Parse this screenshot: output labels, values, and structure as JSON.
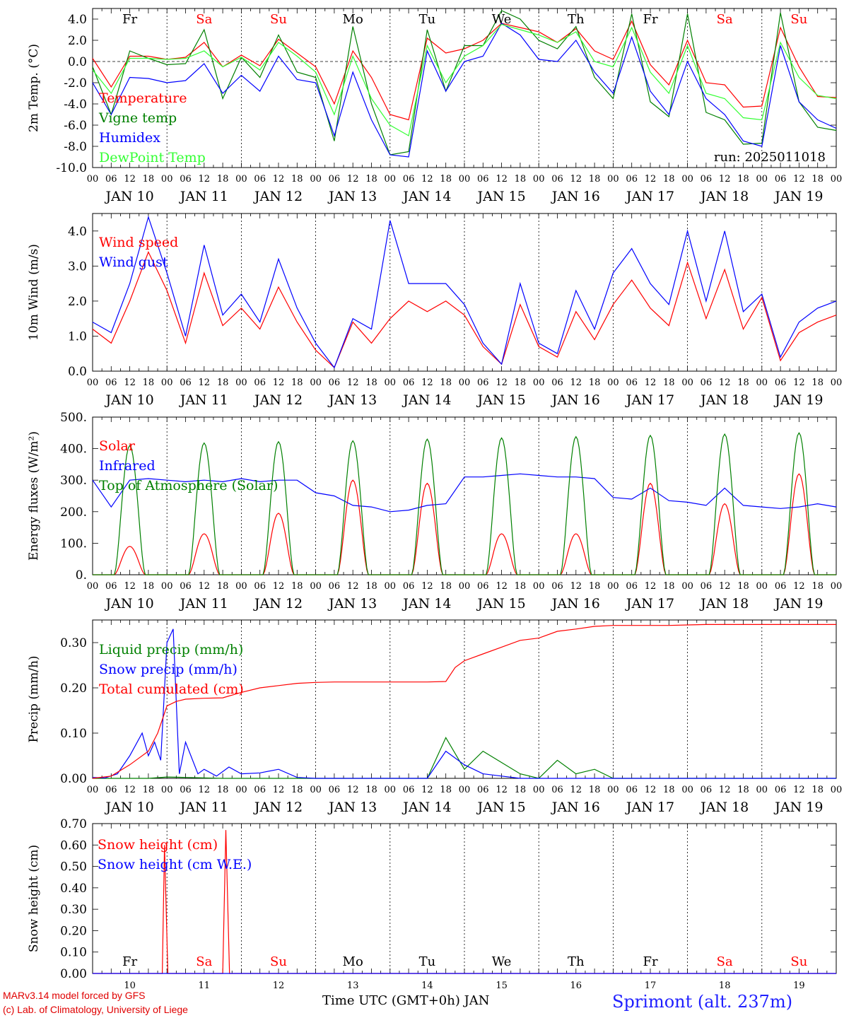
{
  "colors": {
    "red": "#ff0000",
    "darkgreen": "#008000",
    "blue": "#0000ff",
    "lightgreen": "#33ff33"
  },
  "days": [
    "10",
    "11",
    "12",
    "13",
    "14",
    "15",
    "16",
    "17",
    "18",
    "19"
  ],
  "weekdays": [
    {
      "label": "Fr",
      "color": "#000000"
    },
    {
      "label": "Sa",
      "color": "#ff0000"
    },
    {
      "label": "Su",
      "color": "#ff0000"
    },
    {
      "label": "Mo",
      "color": "#000000"
    },
    {
      "label": "Tu",
      "color": "#000000"
    },
    {
      "label": "We",
      "color": "#000000"
    },
    {
      "label": "Th",
      "color": "#000000"
    },
    {
      "label": "Fr",
      "color": "#000000"
    },
    {
      "label": "Sa",
      "color": "#ff0000"
    },
    {
      "label": "Su",
      "color": "#ff0000"
    }
  ],
  "hour_ticks": [
    "00",
    "06",
    "12",
    "18"
  ],
  "month": "JAN",
  "footer": {
    "model": "MARv3.14 model forced by GFS",
    "credit": "(c) Lab. of Climatology, University of Liege",
    "xaxis": "Time UTC (GMT+0h) JAN",
    "station": "Sprimont (alt. 237m)"
  },
  "chart_data": [
    {
      "type": "line",
      "ylabel": "2m Temp. (°C)",
      "ylim": [
        -10,
        5
      ],
      "yticks": [
        "4.0",
        "2.0",
        "0.0",
        "-2.0",
        "-4.0",
        "-6.0",
        "-8.0",
        "-10.0"
      ],
      "run_label": "run: 2025011018",
      "zero_line": true,
      "series": [
        {
          "name": "Temperature",
          "color": "#ff0000",
          "x": [
            0,
            6,
            12,
            18,
            24,
            30,
            36,
            42,
            48,
            54,
            60,
            66,
            72,
            78,
            84,
            90,
            96,
            102,
            108,
            114,
            120,
            126,
            132,
            138,
            144,
            150,
            156,
            162,
            168,
            174,
            180,
            186,
            192,
            198,
            204,
            210,
            216,
            222,
            228,
            234,
            240
          ],
          "y": [
            0.3,
            -2.4,
            0.5,
            0.5,
            0.2,
            0.4,
            1.8,
            -0.5,
            0.6,
            -0.4,
            2.1,
            0.8,
            -0.5,
            -4.0,
            1.0,
            -1.5,
            -5.0,
            -5.5,
            2.2,
            0.8,
            1.2,
            2.0,
            3.6,
            3.2,
            2.8,
            1.8,
            3.1,
            1.0,
            0.2,
            3.8,
            -0.3,
            -2.2,
            2.0,
            -2.0,
            -2.2,
            -4.3,
            -4.2,
            3.2,
            -0.5,
            -3.3,
            -3.4
          ]
        },
        {
          "name": "Vigne temp",
          "color": "#008000",
          "x": [
            0,
            6,
            12,
            18,
            24,
            30,
            36,
            42,
            48,
            54,
            60,
            66,
            72,
            78,
            84,
            90,
            96,
            102,
            108,
            114,
            120,
            126,
            132,
            138,
            144,
            150,
            156,
            162,
            168,
            174,
            180,
            186,
            192,
            198,
            204,
            210,
            216,
            222,
            228,
            234,
            240
          ],
          "y": [
            -0.5,
            -5.0,
            1.0,
            0.3,
            -0.3,
            -0.2,
            3.0,
            -3.5,
            0.4,
            -1.5,
            2.5,
            -1.0,
            -1.5,
            -7.5,
            3.3,
            -4.0,
            -8.8,
            -8.5,
            3.0,
            -2.8,
            1.5,
            1.5,
            4.8,
            4.0,
            2.0,
            1.2,
            3.3,
            -1.5,
            -3.5,
            4.5,
            -3.8,
            -5.2,
            4.5,
            -4.8,
            -5.5,
            -7.8,
            -7.7,
            4.6,
            -3.8,
            -6.2,
            -6.5
          ]
        },
        {
          "name": "Humidex",
          "color": "#0000ff",
          "x": [
            0,
            6,
            12,
            18,
            24,
            30,
            36,
            42,
            48,
            54,
            60,
            66,
            72,
            78,
            84,
            90,
            96,
            102,
            108,
            114,
            120,
            126,
            132,
            138,
            144,
            150,
            156,
            162,
            168,
            174,
            180,
            186,
            192,
            198,
            204,
            210,
            216,
            222,
            228,
            234,
            240
          ],
          "y": [
            -2.0,
            -5.0,
            -1.5,
            -1.6,
            -2.0,
            -1.8,
            -0.2,
            -3.0,
            -1.3,
            -2.8,
            0.5,
            -1.7,
            -2.0,
            -7.0,
            -1.0,
            -5.5,
            -8.8,
            -9.0,
            1.0,
            -2.8,
            0.0,
            0.5,
            3.6,
            2.5,
            0.2,
            0.0,
            2.0,
            -1.0,
            -3.0,
            2.3,
            -2.8,
            -5.0,
            0.0,
            -3.5,
            -5.0,
            -7.5,
            -8.0,
            1.5,
            -3.8,
            -5.5,
            -6.3
          ]
        },
        {
          "name": "DewPoint Temp",
          "color": "#33ff33",
          "x": [
            0,
            6,
            12,
            18,
            24,
            30,
            36,
            42,
            48,
            54,
            60,
            66,
            72,
            78,
            84,
            90,
            96,
            102,
            108,
            114,
            120,
            126,
            132,
            138,
            144,
            150,
            156,
            162,
            168,
            174,
            180,
            186,
            192,
            198,
            204,
            210,
            216,
            222,
            228,
            234,
            240
          ],
          "y": [
            -0.8,
            -3.0,
            0.3,
            0.3,
            0.2,
            0.3,
            1.0,
            -0.5,
            0.4,
            -0.8,
            1.8,
            0.5,
            -1.0,
            -5.0,
            0.5,
            -3.5,
            -6.0,
            -7.0,
            1.5,
            -2.0,
            0.5,
            1.5,
            3.5,
            3.0,
            2.5,
            1.8,
            2.8,
            0.0,
            -0.5,
            3.2,
            -1.0,
            -3.0,
            1.5,
            -3.0,
            -3.5,
            -5.3,
            -5.5,
            1.8,
            -1.5,
            -3.2,
            -3.5
          ]
        }
      ]
    },
    {
      "type": "line",
      "ylabel": "10m Wind (m/s)",
      "ylim": [
        0,
        4.5
      ],
      "yticks": [
        "4.0",
        "3.0",
        "2.0",
        "1.0",
        "0.0"
      ],
      "series": [
        {
          "name": "Wind speed",
          "color": "#ff0000",
          "x": [
            0,
            6,
            12,
            18,
            24,
            30,
            36,
            42,
            48,
            54,
            60,
            66,
            72,
            78,
            84,
            90,
            96,
            102,
            108,
            114,
            120,
            126,
            132,
            138,
            144,
            150,
            156,
            162,
            168,
            174,
            180,
            186,
            192,
            198,
            204,
            210,
            216,
            222,
            228,
            234,
            240
          ],
          "y": [
            1.2,
            0.8,
            2.0,
            3.4,
            2.3,
            0.8,
            2.8,
            1.3,
            1.8,
            1.2,
            2.4,
            1.4,
            0.6,
            0.1,
            1.4,
            0.8,
            1.5,
            2.0,
            1.7,
            2.0,
            1.6,
            0.7,
            0.2,
            1.9,
            0.7,
            0.4,
            1.7,
            0.9,
            1.9,
            2.6,
            1.8,
            1.3,
            3.1,
            1.5,
            2.9,
            1.2,
            2.1,
            0.3,
            1.1,
            1.4,
            1.6
          ]
        },
        {
          "name": "Wind gust",
          "color": "#0000ff",
          "x": [
            0,
            6,
            12,
            18,
            24,
            30,
            36,
            42,
            48,
            54,
            60,
            66,
            72,
            78,
            84,
            90,
            96,
            102,
            108,
            114,
            120,
            126,
            132,
            138,
            144,
            150,
            156,
            162,
            168,
            174,
            180,
            186,
            192,
            198,
            204,
            210,
            216,
            222,
            228,
            234,
            240
          ],
          "y": [
            1.4,
            1.1,
            2.5,
            4.4,
            2.8,
            1.0,
            3.6,
            1.6,
            2.2,
            1.4,
            3.2,
            1.8,
            0.8,
            0.1,
            1.5,
            1.2,
            4.3,
            2.5,
            2.5,
            2.5,
            1.9,
            0.8,
            0.2,
            2.5,
            0.8,
            0.5,
            2.3,
            1.2,
            2.8,
            3.5,
            2.5,
            1.9,
            4.0,
            2.0,
            4.0,
            1.7,
            2.2,
            0.4,
            1.4,
            1.8,
            2.0
          ]
        }
      ]
    },
    {
      "type": "line",
      "ylabel": "Energy fluxes (W/m²)",
      "ylim": [
        0,
        500
      ],
      "yticks": [
        "500.",
        "400.",
        "300.",
        "200.",
        "100.",
        "0."
      ],
      "series": [
        {
          "name": "Solar",
          "color": "#ff0000",
          "peaks": [
            90,
            130,
            195,
            300,
            290,
            130,
            130,
            290,
            225,
            320
          ]
        },
        {
          "name": "Infrared",
          "color": "#0000ff",
          "x": [
            0,
            6,
            12,
            18,
            24,
            30,
            36,
            42,
            48,
            54,
            60,
            66,
            72,
            78,
            84,
            90,
            96,
            102,
            108,
            114,
            120,
            126,
            132,
            138,
            144,
            150,
            156,
            162,
            168,
            174,
            180,
            186,
            192,
            198,
            204,
            210,
            216,
            222,
            228,
            234,
            240
          ],
          "y": [
            300,
            215,
            300,
            305,
            300,
            295,
            300,
            295,
            305,
            295,
            300,
            300,
            260,
            250,
            220,
            215,
            200,
            205,
            220,
            225,
            310,
            310,
            315,
            320,
            315,
            310,
            310,
            305,
            245,
            240,
            275,
            235,
            230,
            220,
            275,
            220,
            215,
            210,
            215,
            225,
            215
          ]
        },
        {
          "name": "Top of Atmosphere (Solar)",
          "color": "#008000",
          "peaks": [
            410,
            418,
            422,
            425,
            430,
            434,
            438,
            442,
            446,
            450
          ]
        }
      ]
    },
    {
      "type": "line",
      "ylabel": "Precip (mm/h)",
      "ylim": [
        0,
        0.35
      ],
      "yticks": [
        "0.30",
        "0.20",
        "0.10",
        "0.00"
      ],
      "series": [
        {
          "name": "Liquid precip (mm/h)",
          "color": "#008000",
          "x": [
            0,
            6,
            12,
            18,
            24,
            30,
            36,
            42,
            48,
            54,
            60,
            66,
            72,
            78,
            84,
            90,
            96,
            102,
            108,
            114,
            120,
            126,
            132,
            138,
            144,
            150,
            156,
            162,
            168,
            174,
            180,
            186,
            192,
            198,
            204,
            210,
            216,
            222,
            228,
            234,
            240
          ],
          "y": [
            0,
            0,
            0,
            0,
            0.003,
            0.002,
            0.001,
            0,
            0,
            0,
            0,
            0,
            0,
            0,
            0,
            0,
            0,
            0,
            0,
            0.09,
            0.02,
            0.06,
            0.035,
            0.01,
            0,
            0.04,
            0.01,
            0.02,
            0,
            0,
            0,
            0,
            0,
            0,
            0,
            0,
            0,
            0,
            0,
            0,
            0
          ]
        },
        {
          "name": "Snow precip (mm/h)",
          "color": "#0000ff",
          "x": [
            0,
            4,
            8,
            12,
            16,
            18,
            20,
            22,
            24,
            26,
            28,
            30,
            34,
            36,
            40,
            44,
            48,
            54,
            60,
            66,
            72,
            78,
            84,
            90,
            96,
            102,
            108,
            114,
            120,
            126,
            132,
            138,
            144,
            150,
            156,
            162,
            168,
            174,
            180,
            186,
            192,
            198,
            204,
            210,
            216,
            222,
            228,
            234,
            240
          ],
          "y": [
            0.002,
            0.001,
            0.01,
            0.05,
            0.1,
            0.05,
            0.08,
            0.04,
            0.3,
            0.33,
            0.01,
            0.08,
            0.01,
            0.02,
            0.005,
            0.025,
            0.01,
            0.012,
            0.02,
            0.002,
            0,
            0,
            0,
            0,
            0,
            0,
            0,
            0.06,
            0.03,
            0.01,
            0.005,
            0,
            0,
            0,
            0,
            0,
            0,
            0,
            0,
            0,
            0,
            0,
            0,
            0,
            0,
            0,
            0,
            0,
            0
          ]
        },
        {
          "name": "Total cumulated (cm)",
          "color": "#ff0000",
          "x": [
            0,
            6,
            12,
            18,
            21,
            24,
            27,
            30,
            36,
            42,
            48,
            54,
            60,
            66,
            72,
            78,
            84,
            90,
            96,
            102,
            108,
            114,
            117,
            120,
            126,
            132,
            138,
            144,
            150,
            156,
            162,
            168,
            174,
            180,
            186,
            192,
            198,
            204,
            210,
            216,
            222,
            228,
            234,
            240
          ],
          "y": [
            0,
            0.005,
            0.03,
            0.06,
            0.1,
            0.16,
            0.17,
            0.175,
            0.177,
            0.178,
            0.19,
            0.2,
            0.205,
            0.21,
            0.212,
            0.213,
            0.213,
            0.213,
            0.213,
            0.213,
            0.213,
            0.214,
            0.245,
            0.26,
            0.275,
            0.29,
            0.305,
            0.31,
            0.325,
            0.33,
            0.336,
            0.338,
            0.338,
            0.338,
            0.338,
            0.339,
            0.34,
            0.34,
            0.34,
            0.34,
            0.34,
            0.34,
            0.34,
            0.34
          ]
        }
      ]
    },
    {
      "type": "line",
      "ylabel": "Snow height (cm)",
      "ylim": [
        0,
        0.7
      ],
      "yticks": [
        "0.70",
        "0.60",
        "0.50",
        "0.40",
        "0.30",
        "0.20",
        "0.10",
        "0.00"
      ],
      "series": [
        {
          "name": "Snow height (cm)",
          "color": "#ff0000",
          "x": [
            0,
            22.5,
            23.2,
            24.3,
            42,
            43,
            44.2,
            240
          ],
          "y": [
            0,
            0,
            0.6,
            0,
            0,
            0.67,
            0,
            0
          ]
        },
        {
          "name": "Snow height (cm W.E.)",
          "color": "#0000ff",
          "x": [
            0,
            240
          ],
          "y": [
            0,
            0
          ]
        }
      ]
    }
  ]
}
